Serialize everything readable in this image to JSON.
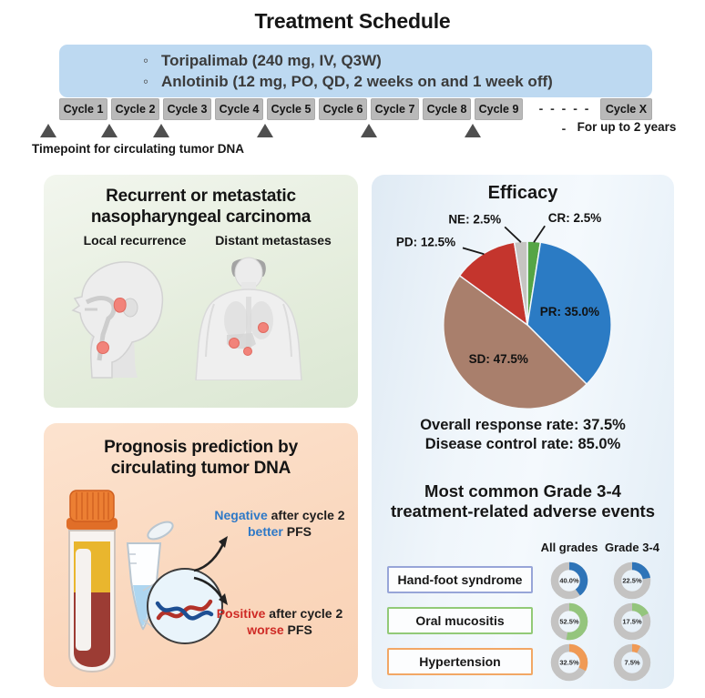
{
  "figure_title": "Treatment Schedule",
  "schedule": {
    "drugs": [
      "Toripalimab (240 mg, IV, Q3W)",
      "Anlotinib (12 mg, PO, QD, 2 weeks on and 1 week off)"
    ],
    "bullet_glyph": "◦",
    "cycles": [
      "Cycle 1",
      "Cycle 2",
      "Cycle 3",
      "Cycle 4",
      "Cycle 5",
      "Cycle 6",
      "Cycle 7",
      "Cycle 8",
      "Cycle 9"
    ],
    "continuation_dots": "- - - - - -",
    "final_cycle": "Cycle X",
    "duration_note": "For up to 2 years",
    "ctdna_note": "Timepoint for circulating tumor DNA",
    "ctdna_markers_before_cycles": [
      1,
      2,
      3,
      5,
      7,
      9
    ],
    "drug_box_color": "#bdd9f1",
    "cycle_box_color": "#b9b9b9",
    "marker_color": "#4f4f4f"
  },
  "disease_panel": {
    "title": "Recurrent or metastatic nasopharyngeal carcinoma",
    "local_label": "Local recurrence",
    "distant_label": "Distant metastases"
  },
  "prognosis_panel": {
    "title": "Prognosis prediction by circulating tumor DNA",
    "negative_keyword": "Negative",
    "negative_rest": " after cycle 2",
    "negative_outcome_keyword": "better",
    "negative_outcome_rest": " PFS",
    "positive_keyword": "Positive",
    "positive_rest": " after cycle 2",
    "positive_outcome_keyword": "worse",
    "positive_outcome_rest": " PFS",
    "negative_color": "#2e79c7",
    "positive_color": "#cf2b26"
  },
  "efficacy_panel": {
    "title": "Efficacy",
    "orr_text": "Overall response rate: 37.5%",
    "dcr_text": "Disease control rate: 85.0%"
  },
  "ae_panel": {
    "title": "Most common Grade 3-4 treatment-related adverse events"
  },
  "chart_data": [
    {
      "type": "pie",
      "title": "Efficacy",
      "start_angle_deg": 0,
      "direction": "clockwise",
      "slices": [
        {
          "label": "CR",
          "pct": 2.5,
          "color": "#55a546",
          "placement": "outside",
          "label_angle": 10
        },
        {
          "label": "PR",
          "pct": 35.0,
          "color": "#2b7bc4",
          "placement": "inside"
        },
        {
          "label": "SD",
          "pct": 47.5,
          "color": "#a97f6c",
          "placement": "inside"
        },
        {
          "label": "PD",
          "pct": 12.5,
          "color": "#c4352d",
          "placement": "outside",
          "label_angle": 320
        },
        {
          "label": "NE",
          "pct": 2.5,
          "color": "#c6c4c2",
          "placement": "outside",
          "label_angle": 347
        }
      ],
      "footers": [
        "Overall response rate: 37.5%",
        "Disease control rate: 85.0%"
      ]
    },
    {
      "type": "donut-grid",
      "title": "Most common Grade 3-4 treatment-related adverse events",
      "columns": [
        "All grades",
        "Grade 3-4"
      ],
      "track_color": "#c4c3c2",
      "rows": [
        {
          "label": "Hand-foot syndrome",
          "all_grades_pct": 40.0,
          "grade_3_4_pct": 22.5,
          "arc_color": "#2e74b8",
          "box_border_color": "#97a5d8"
        },
        {
          "label": "Oral mucositis",
          "all_grades_pct": 52.5,
          "grade_3_4_pct": 17.5,
          "arc_color": "#94c57d",
          "box_border_color": "#92ca77"
        },
        {
          "label": "Hypertension",
          "all_grades_pct": 32.5,
          "grade_3_4_pct": 7.5,
          "arc_color": "#f09a55",
          "box_border_color": "#f2a765"
        }
      ]
    }
  ]
}
